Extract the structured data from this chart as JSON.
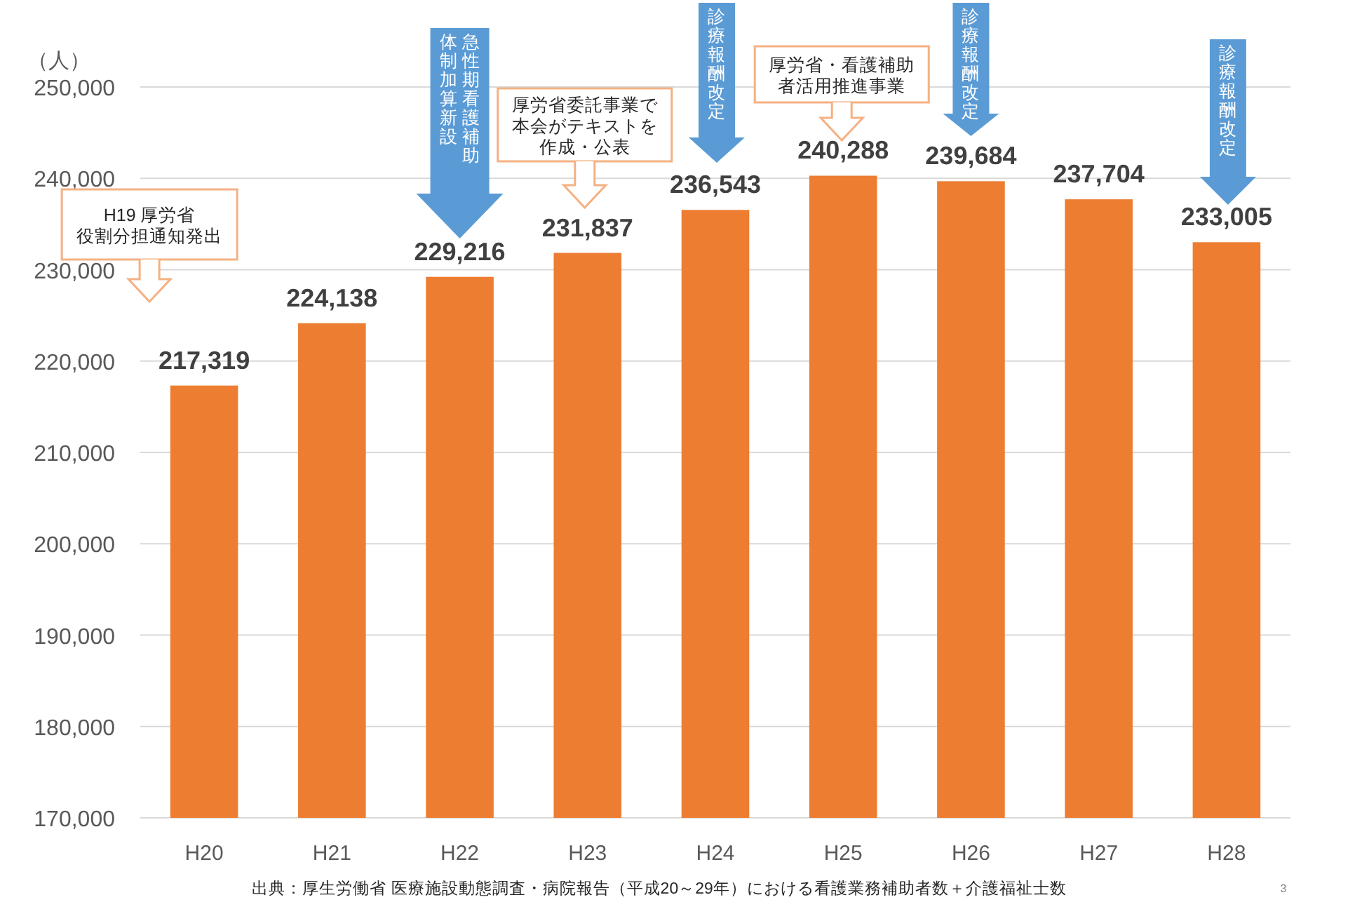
{
  "chart_data": {
    "type": "bar",
    "ylabel": "（人）",
    "categories": [
      "H20",
      "H21",
      "H22",
      "H23",
      "H24",
      "H25",
      "H26",
      "H27",
      "H28"
    ],
    "values": [
      217319,
      224138,
      229216,
      231837,
      236543,
      240288,
      239684,
      237704,
      233005
    ],
    "value_labels": [
      "217,319",
      "224,138",
      "229,216",
      "231,837",
      "236,543",
      "240,288",
      "239,684",
      "237,704",
      "233,005"
    ],
    "color": "#ed7d31",
    "ylim": [
      170000,
      250000
    ],
    "yticks": [
      {
        "value": 170000,
        "label": "170,000"
      },
      {
        "value": 180000,
        "label": "180,000"
      },
      {
        "value": 190000,
        "label": "190,000"
      },
      {
        "value": 200000,
        "label": "200,000"
      },
      {
        "value": 210000,
        "label": "210,000"
      },
      {
        "value": 220000,
        "label": "220,000"
      },
      {
        "value": 230000,
        "label": "230,000"
      },
      {
        "value": 240000,
        "label": "240,000"
      },
      {
        "value": 250000,
        "label": "250,000"
      }
    ],
    "grid": "y",
    "annotations": [
      "H19 厚労省役割分担通知発出",
      "急性期看護補助",
      "体制加算新設",
      "厚労省委託事業で本会がテキストを作成・公表",
      "診療報酬改定",
      "厚労省・看護補助者活用推進事業",
      "診療報酬改定",
      "診療報酬改定",
      "出典：厚生労働省 医療施設動態調査・病院報告（平成20～29年）における看護業務補助者数＋介護福祉士数",
      "3"
    ]
  }
}
